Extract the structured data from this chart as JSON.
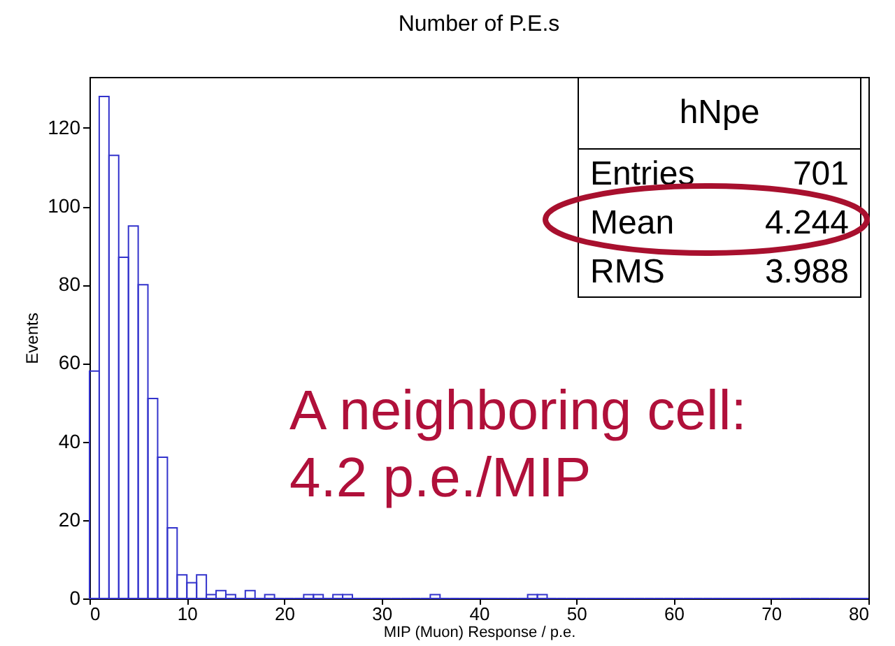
{
  "chart_data": {
    "type": "histogram",
    "title": "Number of P.E.s",
    "xlabel": "MIP (Muon) Response / p.e.",
    "ylabel": "Events",
    "bins": [
      0,
      1,
      2,
      3,
      4,
      5,
      6,
      7,
      8,
      9,
      10,
      11,
      12,
      13,
      14,
      15,
      16,
      17,
      18,
      19,
      20,
      21,
      22,
      23,
      24,
      25,
      26,
      27,
      28,
      29,
      30,
      31,
      32,
      33,
      34,
      35,
      36,
      37,
      38,
      39,
      40,
      41,
      42,
      43,
      44,
      45,
      46,
      47,
      48,
      49,
      50,
      51,
      52,
      53,
      54,
      55,
      56,
      57,
      58,
      59,
      60,
      61,
      62,
      63,
      64,
      65,
      66,
      67,
      68,
      69,
      70,
      71,
      72,
      73,
      74,
      75,
      76,
      77,
      78,
      79,
      80
    ],
    "values": [
      58,
      128,
      113,
      87,
      95,
      80,
      51,
      36,
      18,
      6,
      4,
      6,
      1,
      2,
      1,
      0,
      2,
      0,
      1,
      0,
      0,
      0,
      1,
      1,
      0,
      1,
      1,
      0,
      0,
      0,
      0,
      0,
      0,
      0,
      0,
      1,
      0,
      0,
      0,
      0,
      0,
      0,
      0,
      0,
      0,
      1,
      1,
      0,
      0,
      0,
      0,
      0,
      0,
      0,
      0,
      0,
      0,
      0,
      0,
      0,
      0,
      0,
      0,
      0,
      0,
      0,
      0,
      0,
      0,
      0,
      0,
      0,
      0,
      0,
      0,
      0,
      0,
      0,
      0,
      0
    ],
    "color": "#3333cc",
    "xlim": [
      0,
      80
    ],
    "ylim": [
      0,
      133
    ],
    "xticks": [
      0,
      10,
      20,
      30,
      40,
      50,
      60,
      70,
      80
    ],
    "yticks": [
      0,
      20,
      40,
      60,
      80,
      100,
      120
    ],
    "grid": false,
    "annotations": [
      "hNpe",
      "Entries",
      "701",
      "Mean",
      "4.244",
      "RMS",
      "3.988",
      "A neighboring cell:",
      "4.2 p.e./MIP"
    ]
  }
}
